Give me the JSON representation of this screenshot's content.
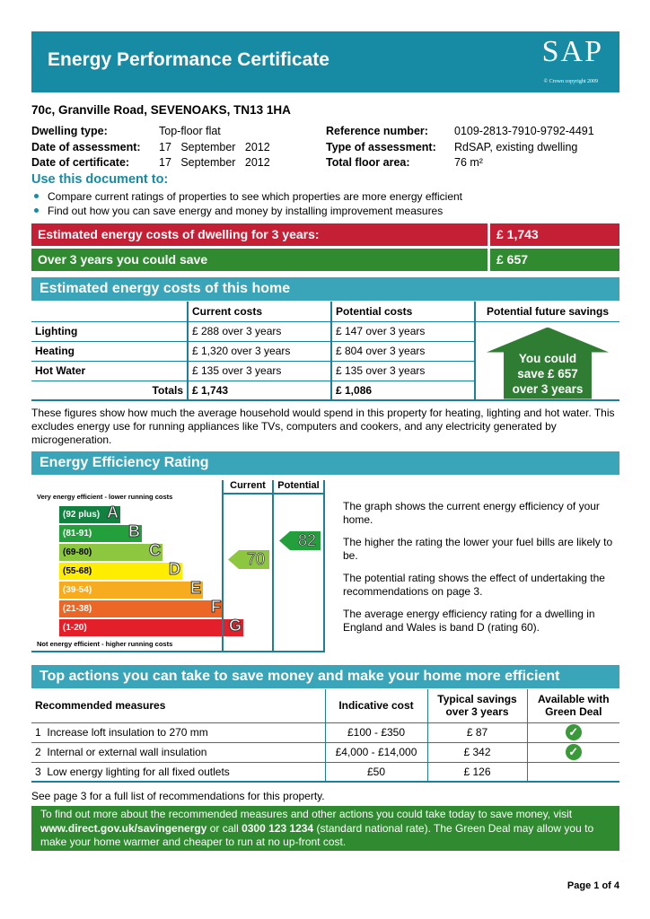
{
  "header": {
    "title": "Energy Performance Certificate",
    "logo": "SAP",
    "copyright": "© Crown copyright 2009"
  },
  "address": "70c, Granville Road, SEVENOAKS, TN13 1HA",
  "details": {
    "left": [
      {
        "label": "Dwelling type:",
        "value": "Top-floor flat"
      },
      {
        "label": "Date of assessment:",
        "value": "17   September   2012"
      },
      {
        "label": "Date of certificate:",
        "value": "17   September   2012"
      }
    ],
    "right": [
      {
        "label": "Reference number:",
        "value": "0109-2813-7910-9792-4491"
      },
      {
        "label": "Type of assessment:",
        "value": "RdSAP, existing dwelling"
      },
      {
        "label": "Total floor area:",
        "value": "76 m²"
      }
    ]
  },
  "use_doc": {
    "title": "Use this document to:",
    "bullets": [
      "Compare current ratings of properties to see which properties are more energy efficient",
      "Find out how you can save energy and money by installing improvement measures"
    ]
  },
  "summary": {
    "cost_label": "Estimated energy costs of dwelling for 3 years:",
    "cost_value": "£ 1,743",
    "save_label": "Over 3 years you could save",
    "save_value": "£ 657"
  },
  "costs": {
    "title": "Estimated energy costs of this home",
    "headers": [
      "",
      "Current costs",
      "Potential costs",
      "Potential future savings"
    ],
    "rows": [
      [
        "Lighting",
        "£ 288 over 3 years",
        "£ 147 over 3 years"
      ],
      [
        "Heating",
        "£ 1,320 over 3 years",
        "£ 804 over 3 years"
      ],
      [
        "Hot Water",
        "£ 135 over 3 years",
        "£ 135 over 3 years"
      ]
    ],
    "totals": [
      "Totals",
      "£ 1,743",
      "£ 1,086"
    ],
    "savings_arrow": [
      "You could",
      "save £ 657",
      "over 3 years"
    ],
    "note": "These figures show how much the average household would spend in this property for heating, lighting and hot water. This excludes energy use for running appliances like TVs, computers and cookers, and any electricity generated by microgeneration."
  },
  "eer": {
    "title": "Energy Efficiency Rating",
    "top_label": "Very energy efficient - lower running costs",
    "bottom_label": "Not energy efficient - higher running costs",
    "col_current": "Current",
    "col_potential": "Potential",
    "bands": [
      {
        "range": "(92 plus)",
        "letter": "A",
        "color": "#12813f"
      },
      {
        "range": "(81-91)",
        "letter": "B",
        "color": "#23a03c"
      },
      {
        "range": "(69-80)",
        "letter": "C",
        "color": "#8dc63f"
      },
      {
        "range": "(55-68)",
        "letter": "D",
        "color": "#ffed00"
      },
      {
        "range": "(39-54)",
        "letter": "E",
        "color": "#f7ab1e"
      },
      {
        "range": "(21-38)",
        "letter": "F",
        "color": "#ec6625"
      },
      {
        "range": "(1-20)",
        "letter": "G",
        "color": "#e3202a"
      }
    ],
    "current": "70",
    "current_color": "#8dc63f",
    "potential": "82",
    "potential_color": "#23a03c",
    "paragraphs": [
      "The graph shows the current energy efficiency of your home.",
      "The higher the rating the lower your fuel bills are likely to be.",
      "The potential rating shows the effect of undertaking the recommendations on page 3.",
      "The average energy efficiency rating for a dwelling in England and Wales is band D (rating 60)."
    ]
  },
  "actions": {
    "title": "Top actions you can take to save money and make your home more efficient",
    "headers": [
      "Recommended measures",
      "Indicative cost",
      "Typical savings over 3 years",
      "Available with Green Deal"
    ],
    "rows": [
      {
        "num": "1",
        "measure": "Increase loft insulation to 270 mm",
        "cost": "£100 - £350",
        "saving": "£ 87",
        "green_deal": true
      },
      {
        "num": "2",
        "measure": "Internal or external wall insulation",
        "cost": "£4,000 - £14,000",
        "saving": "£ 342",
        "green_deal": true
      },
      {
        "num": "3",
        "measure": "Low energy lighting for all fixed outlets",
        "cost": "£50",
        "saving": "£ 126",
        "green_deal": false
      }
    ],
    "see_more": "See page 3 for a full list of recommendations for this property."
  },
  "footer_box": {
    "t1": "To find out more about the recommended measures and other actions you could take today to save money, visit ",
    "link": "www.direct.gov.uk/savingenergy",
    "t2": " or call ",
    "phone": "0300 123 1234",
    "t3": " (standard national rate). The Green Deal may allow you to make your home warmer and cheaper to run at no up-front cost."
  },
  "page": "Page 1 of 4"
}
